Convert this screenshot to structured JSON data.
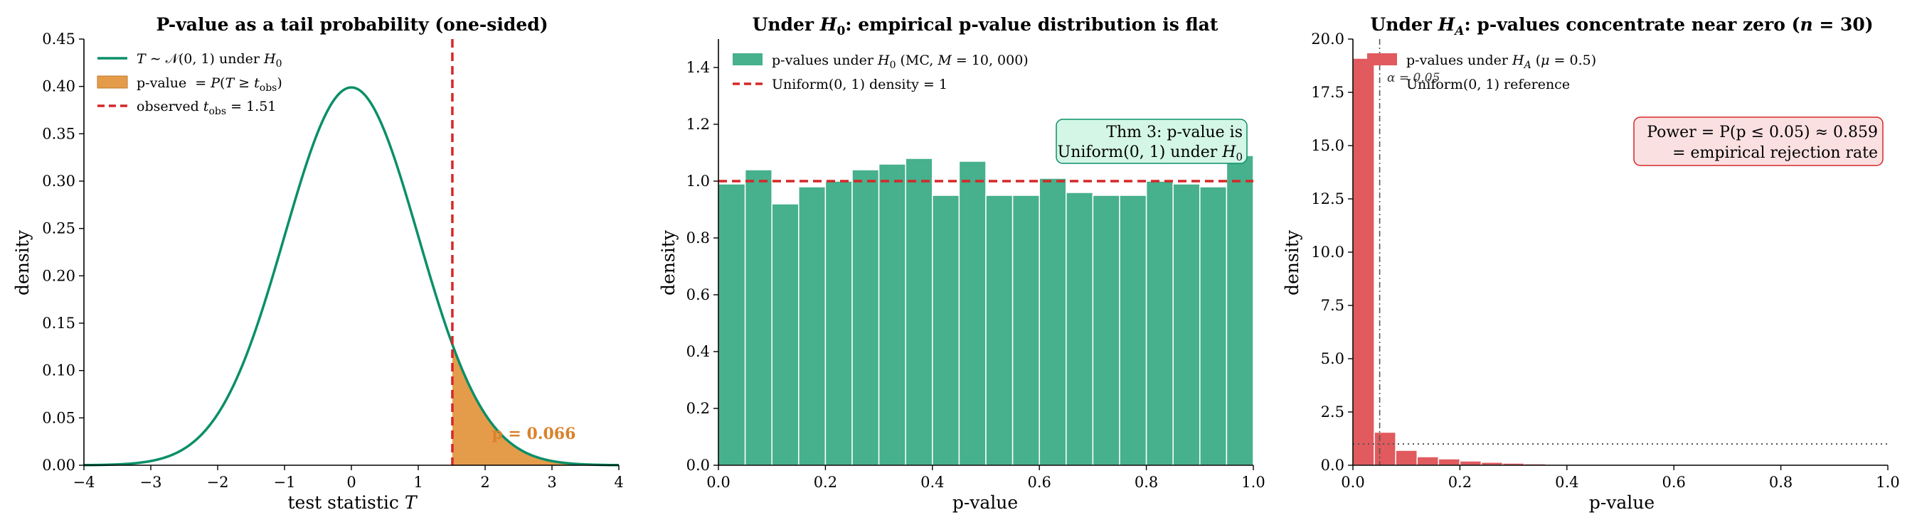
{
  "colors": {
    "green": "#0a8f68",
    "green_fill": "#46b18c",
    "orange": "#e59c4a",
    "orange_text": "#d9822b",
    "red": "#d62728",
    "red_fill": "#e05a5e",
    "grey": "#555555"
  },
  "chart_data": [
    {
      "type": "line",
      "title": "P-value as a tail probability (one-sided)",
      "xlabel": "test statistic T",
      "ylabel": "density",
      "xlim": [
        -4,
        4
      ],
      "ylim": [
        0,
        0.45
      ],
      "x_ticks": [
        -4,
        -3,
        -2,
        -1,
        0,
        1,
        2,
        3,
        4
      ],
      "y_ticks": [
        0.0,
        0.05,
        0.1,
        0.15,
        0.2,
        0.25,
        0.3,
        0.35,
        0.4,
        0.45
      ],
      "series": [
        {
          "name": "T ~ N(0, 1) under H0",
          "curve": "standard-normal-pdf"
        }
      ],
      "shaded_region": {
        "name": "p-value = P(T ≥ t_obs)",
        "x_from": 1.51,
        "x_to": 4
      },
      "vline": {
        "name": "observed t_obs = 1.51",
        "x": 1.51
      },
      "annotation": {
        "text": "p = 0.066",
        "x": 2.1,
        "y": 0.033
      },
      "legend": "upper-left",
      "grid": false
    },
    {
      "type": "bar",
      "title": "Under H0: empirical p-value distribution is flat",
      "xlabel": "p-value",
      "ylabel": "density",
      "xlim": [
        0,
        1
      ],
      "ylim": [
        0,
        1.5
      ],
      "x_ticks": [
        0.0,
        0.2,
        0.4,
        0.6,
        0.8,
        1.0
      ],
      "y_ticks": [
        0.0,
        0.2,
        0.4,
        0.6,
        0.8,
        1.0,
        1.2,
        1.4
      ],
      "bin_width": 0.05,
      "values": [
        0.99,
        1.04,
        0.92,
        0.98,
        1.0,
        1.04,
        1.06,
        1.08,
        0.95,
        1.07,
        0.95,
        0.95,
        1.01,
        0.96,
        0.95,
        0.95,
        1.0,
        0.99,
        0.98,
        1.09
      ],
      "series": [
        {
          "name": "p-values under H0 (MC, M = 10,000)"
        }
      ],
      "hline": {
        "name": "Uniform(0, 1) density = 1",
        "y": 1.0
      },
      "annotation_box": {
        "line1": "Thm 3: p-value is",
        "line2": "Uniform(0, 1) under H0"
      },
      "legend": "upper-left",
      "grid": false
    },
    {
      "type": "bar",
      "title": "Under HA: p-values concentrate near zero (n = 30)",
      "xlabel": "p-value",
      "ylabel": "density",
      "xlim": [
        0,
        1
      ],
      "ylim": [
        0,
        20
      ],
      "x_ticks": [
        0.0,
        0.2,
        0.4,
        0.6,
        0.8,
        1.0
      ],
      "y_ticks": [
        0.0,
        2.5,
        5.0,
        7.5,
        10.0,
        12.5,
        15.0,
        17.5,
        20.0
      ],
      "bin_width": 0.04,
      "values": [
        19.1,
        1.55,
        0.7,
        0.4,
        0.3,
        0.2,
        0.14,
        0.1,
        0.07,
        0.05,
        0.04,
        0.03,
        0.02,
        0.02,
        0.01,
        0.01,
        0.01,
        0.01,
        0.0,
        0.0,
        0.0,
        0.0,
        0.0,
        0.0,
        0.0
      ],
      "series": [
        {
          "name": "p-values under HA (μ = 0.5)"
        }
      ],
      "hline": {
        "name": "Uniform(0, 1) reference",
        "y": 1.0
      },
      "vline": {
        "name": "α = 0.05",
        "x": 0.05
      },
      "annotation_box": {
        "line1": "Power = P(p ≤ 0.05) ≈ 0.859",
        "line2": "= empirical rejection rate"
      },
      "legend": "upper-left",
      "grid": false
    }
  ]
}
